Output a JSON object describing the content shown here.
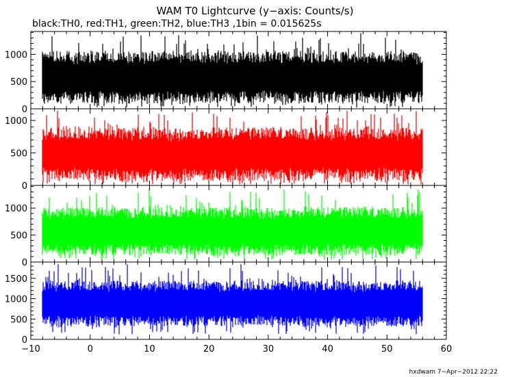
{
  "chart_data": {
    "type": "line",
    "title": "WAM T0 Lightcurve (y−axis: Counts/s)",
    "subtitle": "black:TH0, red:TH1, green:TH2, blue:TH3 ,1bin = 0.015625s",
    "footer": "hxdwam  7−Apr−2012 22:22",
    "xlabel": "",
    "ylabel": "",
    "xlim": [
      -10,
      60
    ],
    "x_ticks": [
      "−10",
      "0",
      "10",
      "20",
      "30",
      "40",
      "50",
      "60"
    ],
    "x_tick_values": [
      -10,
      0,
      10,
      20,
      30,
      40,
      50,
      60
    ],
    "x_range_of_data": [
      -8,
      56
    ],
    "grid": false,
    "panels": [
      {
        "name": "TH0",
        "color": "#000000",
        "ylim": [
          0,
          1420
        ],
        "yticks": [
          0,
          500,
          1000
        ],
        "baseline": 580,
        "typical_low": 120,
        "typical_high": 1080,
        "min": 20,
        "max": 1400
      },
      {
        "name": "TH1",
        "color": "#ff0000",
        "ylim": [
          0,
          1180
        ],
        "yticks": [
          0,
          500,
          1000
        ],
        "baseline": 480,
        "typical_low": 80,
        "typical_high": 900,
        "min": 10,
        "max": 1150
      },
      {
        "name": "TH2",
        "color": "#00ff00",
        "ylim": [
          0,
          1420
        ],
        "yticks": [
          0,
          500,
          1000
        ],
        "baseline": 570,
        "typical_low": 150,
        "typical_high": 1050,
        "min": 30,
        "max": 1370
      },
      {
        "name": "TH3",
        "color": "#0000ff",
        "ylim": [
          0,
          1900
        ],
        "yticks": [
          0,
          500,
          1000,
          1500
        ],
        "baseline": 880,
        "typical_low": 350,
        "typical_high": 1480,
        "min": 100,
        "max": 1850
      }
    ]
  }
}
